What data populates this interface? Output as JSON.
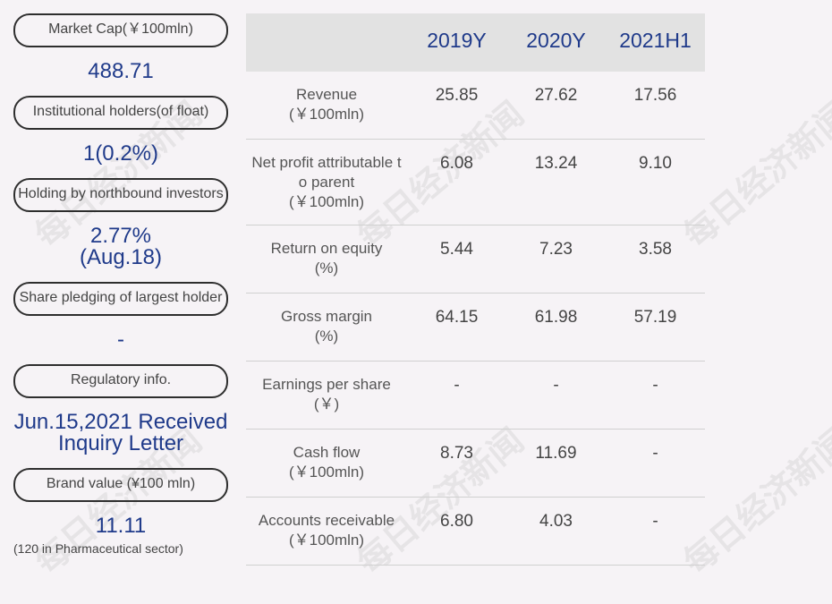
{
  "watermark": "每日经济新闻",
  "left": [
    {
      "label": "Market Cap(￥100mln)",
      "value": "488.71"
    },
    {
      "label": "Institutional holders(of float)",
      "value": "1(0.2%)"
    },
    {
      "label": "Holding by northbound investors",
      "value_line1": "2.77%",
      "value_line2": "(Aug.18)"
    },
    {
      "label": "Share pledging of largest holder",
      "value": "-"
    },
    {
      "label": "Regulatory info.",
      "value_line1": "Jun.15,2021 Received",
      "value_line2": "Inquiry Letter"
    },
    {
      "label": "Brand value (¥100 mln)",
      "value": "11.11",
      "note": "(120 in Pharmaceutical sector)"
    }
  ],
  "table": {
    "headers": [
      "2019Y",
      "2020Y",
      "2021H1"
    ],
    "rows": [
      {
        "label": "Revenue",
        "unit": "(￥100mln)",
        "values": [
          "25.85",
          "27.62",
          "17.56"
        ]
      },
      {
        "label_line1": "Net profit attributable t",
        "label_line2": "o parent",
        "unit": "(￥100mln)",
        "values": [
          "6.08",
          "13.24",
          "9.10"
        ]
      },
      {
        "label": "Return on equity",
        "unit": "(%)",
        "values": [
          "5.44",
          "7.23",
          "3.58"
        ]
      },
      {
        "label": "Gross margin",
        "unit": "(%)",
        "values": [
          "64.15",
          "61.98",
          "57.19"
        ]
      },
      {
        "label": "Earnings per share",
        "unit": "(￥)",
        "values": [
          "-",
          "-",
          "-"
        ]
      },
      {
        "label": "Cash flow",
        "unit": "(￥100mln)",
        "values": [
          "8.73",
          "11.69",
          "-"
        ]
      },
      {
        "label": "Accounts receivable",
        "unit": "(￥100mln)",
        "values": [
          "6.80",
          "4.03",
          "-"
        ]
      }
    ]
  }
}
